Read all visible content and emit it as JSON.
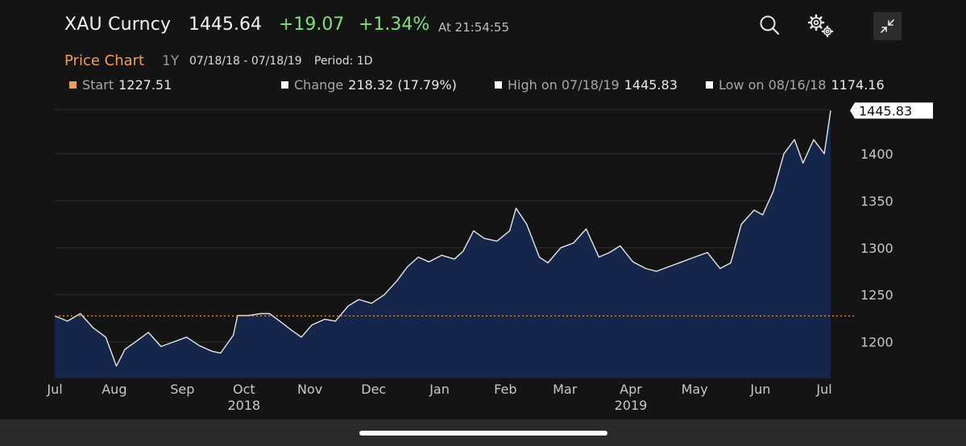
{
  "header": {
    "ticker": "XAU Curncy",
    "price": "1445.64",
    "change": "+19.07",
    "change_pct": "+1.34%",
    "time": "At 21:54:55",
    "icons": [
      "search-icon",
      "settings-icon",
      "collapse-icon"
    ]
  },
  "subtitle": {
    "title": "Price Chart",
    "range": "1Y",
    "dates": "07/18/18 - 07/18/19",
    "period": "Period: 1D"
  },
  "stats": {
    "start_label": "Start",
    "start_value": "1227.51",
    "change_label": "Change",
    "change_value": "218.32 (17.79%)",
    "high_label": "High on 07/18/19",
    "high_value": "1445.83",
    "low_label": "Low on 08/16/18",
    "low_value": "1174.16"
  },
  "colors": {
    "accent": "#f0a04b",
    "positive": "#7ee07e",
    "area_fill": "#15264a",
    "line": "#e6e6e6",
    "background": "#141414"
  },
  "chart_data": {
    "type": "area",
    "title": "Price Chart",
    "xlabel": "",
    "ylabel": "",
    "ylim": [
      1162,
      1447
    ],
    "xlim": [
      "2018-07-18",
      "2019-07-18"
    ],
    "y_ticks": [
      1200,
      1250,
      1300,
      1350,
      1400
    ],
    "x_ticks": [
      {
        "date": "2018-07-18",
        "label": "Jul"
      },
      {
        "date": "2018-08-15",
        "label": "Aug"
      },
      {
        "date": "2018-09-16",
        "label": "Sep"
      },
      {
        "date": "2018-10-15",
        "label": "Oct"
      },
      {
        "date": "2018-11-15",
        "label": "Nov"
      },
      {
        "date": "2018-12-15",
        "label": "Dec"
      },
      {
        "date": "2019-01-15",
        "label": "Jan"
      },
      {
        "date": "2019-02-15",
        "label": "Feb"
      },
      {
        "date": "2019-03-15",
        "label": "Mar"
      },
      {
        "date": "2019-04-15",
        "label": "Apr"
      },
      {
        "date": "2019-05-15",
        "label": "May"
      },
      {
        "date": "2019-06-15",
        "label": "Jun"
      },
      {
        "date": "2019-07-15",
        "label": "Jul"
      }
    ],
    "year_labels": [
      {
        "date": "2018-10-15",
        "label": "2018"
      },
      {
        "date": "2019-04-15",
        "label": "2019"
      }
    ],
    "reference_line": {
      "value": 1227.51,
      "style": "dotted",
      "color": "#f0a04b"
    },
    "last_value_label": "1445.83",
    "grid": true,
    "series": [
      {
        "x": [
          "2018-07-18",
          "2018-07-24",
          "2018-07-30",
          "2018-08-05",
          "2018-08-11",
          "2018-08-16",
          "2018-08-20",
          "2018-08-25",
          "2018-08-31",
          "2018-09-06",
          "2018-09-12",
          "2018-09-18",
          "2018-09-24",
          "2018-09-30",
          "2018-10-04",
          "2018-10-10",
          "2018-10-12",
          "2018-10-17",
          "2018-10-23",
          "2018-10-27",
          "2018-11-02",
          "2018-11-06",
          "2018-11-11",
          "2018-11-16",
          "2018-11-22",
          "2018-11-27",
          "2018-12-03",
          "2018-12-08",
          "2018-12-14",
          "2018-12-20",
          "2018-12-26",
          "2018-12-31",
          "2019-01-05",
          "2019-01-10",
          "2019-01-16",
          "2019-01-22",
          "2019-01-26",
          "2019-01-31",
          "2019-02-05",
          "2019-02-11",
          "2019-02-17",
          "2019-02-20",
          "2019-02-25",
          "2019-03-03",
          "2019-03-07",
          "2019-03-13",
          "2019-03-19",
          "2019-03-25",
          "2019-03-31",
          "2019-04-05",
          "2019-04-10",
          "2019-04-16",
          "2019-04-22",
          "2019-04-27",
          "2019-05-03",
          "2019-05-09",
          "2019-05-15",
          "2019-05-21",
          "2019-05-27",
          "2019-06-01",
          "2019-06-06",
          "2019-06-12",
          "2019-06-16",
          "2019-06-21",
          "2019-06-26",
          "2019-07-01",
          "2019-07-05",
          "2019-07-10",
          "2019-07-15",
          "2019-07-18"
        ],
        "y": [
          1227.5,
          1222,
          1230,
          1215,
          1205,
          1174.2,
          1192,
          1200,
          1210,
          1195,
          1200,
          1205,
          1196,
          1190,
          1188,
          1207,
          1228,
          1228,
          1230,
          1230,
          1220,
          1213,
          1205,
          1218,
          1224,
          1222,
          1238,
          1245,
          1241,
          1250,
          1265,
          1280,
          1290,
          1285,
          1292,
          1288,
          1296,
          1318,
          1310,
          1307,
          1318,
          1342,
          1325,
          1290,
          1284,
          1300,
          1305,
          1320,
          1290,
          1295,
          1302,
          1285,
          1278,
          1275,
          1280,
          1285,
          1290,
          1295,
          1278,
          1284,
          1325,
          1340,
          1335,
          1360,
          1400,
          1415,
          1390,
          1415,
          1400,
          1445.8
        ]
      }
    ]
  }
}
